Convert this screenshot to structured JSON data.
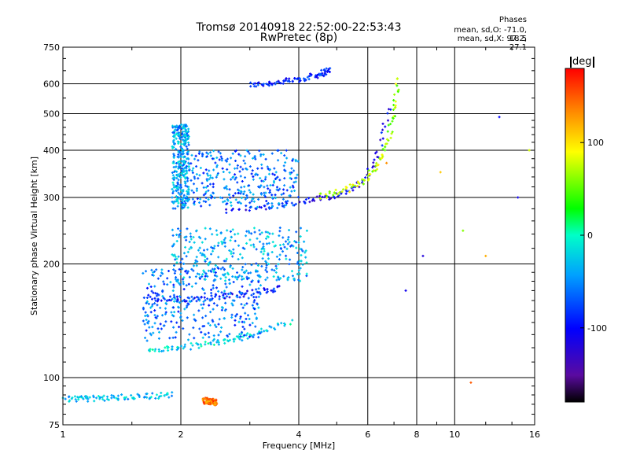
{
  "title": "Tromsø 20140918 22:52:00-22:53:43",
  "subtitle": "RwPretec (8p)",
  "phases": {
    "heading": "Phases",
    "line1": "mean, sd,O: -71.0, 18.5",
    "line2": "mean, sd,X:  97.2, 27.1"
  },
  "colorbar": {
    "label": "deg",
    "range": [
      -180,
      180
    ],
    "ticks": [
      "100",
      "0",
      "-100"
    ],
    "tick_values": [
      100,
      0,
      -100
    ]
  },
  "chart_data": {
    "type": "scatter",
    "title": "Tromsø 20140918 22:52:00-22:53:43",
    "subtitle": "RwPretec (8p)",
    "xlabel": "Frequency [MHz]",
    "ylabel": "Stationary phase Virtual Height [km]",
    "x_scale": "log",
    "y_scale": "log",
    "xlim": [
      1,
      16
    ],
    "ylim": [
      75,
      750
    ],
    "x_ticks": [
      1,
      2,
      4,
      6,
      8,
      10,
      16
    ],
    "x_tick_labels": [
      "1",
      "2",
      "4",
      "6",
      "8",
      "10",
      "16"
    ],
    "y_ticks": [
      75,
      100,
      200,
      300,
      400,
      500,
      600,
      750
    ],
    "y_tick_labels": [
      "75",
      "100",
      "200",
      "300",
      "400",
      "500",
      "600",
      "750"
    ],
    "grid": true,
    "color_encodes": "phase [deg]",
    "traces": [
      {
        "x": [
          3.0,
          3.5,
          4.0,
          4.5,
          4.8
        ],
        "y": [
          595,
          605,
          615,
          635,
          655
        ],
        "phase": -90
      },
      {
        "x": [
          2.6,
          3.2,
          4.0,
          4.5,
          5.0,
          5.5,
          6.0,
          6.4,
          6.8
        ],
        "y": [
          275,
          282,
          292,
          298,
          305,
          315,
          340,
          400,
          520
        ],
        "phase": -105
      },
      {
        "x": [
          4.5,
          5.2,
          5.8,
          6.3,
          6.7,
          7.0,
          7.2
        ],
        "y": [
          302,
          312,
          330,
          360,
          410,
          500,
          620
        ],
        "phase": 70
      },
      {
        "x": [
          1.65,
          2.0,
          2.5,
          3.0,
          3.8
        ],
        "y": [
          118,
          120,
          124,
          130,
          140
        ],
        "phase": -20
      },
      {
        "x": [
          1.7,
          2.2,
          2.8,
          3.6
        ],
        "y": [
          160,
          162,
          166,
          172
        ],
        "phase": -90
      },
      {
        "x": [
          1.0,
          1.2,
          1.5,
          1.9
        ],
        "y": [
          88,
          88,
          89,
          90
        ],
        "phase": -30
      },
      {
        "x": [
          2.3,
          2.45
        ],
        "y": [
          87,
          86
        ],
        "phase": 140
      }
    ],
    "clusters": [
      {
        "x_range": [
          1.9,
          2.1
        ],
        "y_range": [
          280,
          470
        ],
        "phase": -40
      },
      {
        "x_range": [
          2.1,
          4.0
        ],
        "y_range": [
          280,
          400
        ],
        "phase": -60
      },
      {
        "x_range": [
          1.9,
          4.2
        ],
        "y_range": [
          180,
          250
        ],
        "phase": -40
      },
      {
        "x_range": [
          1.6,
          3.2
        ],
        "y_range": [
          125,
          195
        ],
        "phase": -60
      }
    ],
    "scattered": [
      {
        "x": 11.0,
        "y": 97,
        "phase": 150
      },
      {
        "x": 14.5,
        "y": 300,
        "phase": -110
      },
      {
        "x": 13.0,
        "y": 490,
        "phase": -100
      },
      {
        "x": 12.0,
        "y": 210,
        "phase": 120
      },
      {
        "x": 15.5,
        "y": 400,
        "phase": 80
      },
      {
        "x": 7.5,
        "y": 170,
        "phase": -110
      },
      {
        "x": 8.3,
        "y": 210,
        "phase": -120
      },
      {
        "x": 6.7,
        "y": 370,
        "phase": 130
      },
      {
        "x": 9.2,
        "y": 350,
        "phase": 110
      },
      {
        "x": 10.5,
        "y": 245,
        "phase": 60
      }
    ]
  }
}
